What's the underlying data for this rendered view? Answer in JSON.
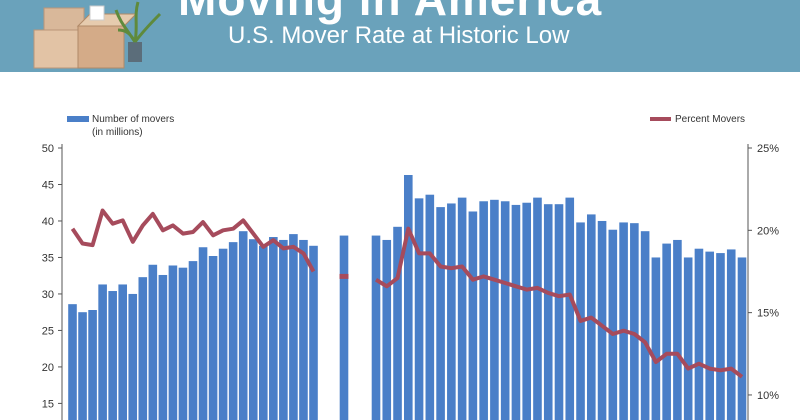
{
  "banner": {
    "title": "Moving in America",
    "subtitle": "U.S. Mover Rate at Historic Low",
    "illustration": "moving-boxes-with-plant"
  },
  "colors": {
    "banner": "#6aa2bb",
    "bars": "#4a7fc8",
    "line": "#a64b5c",
    "axis": "#555555"
  },
  "chart_data": {
    "type": "bar+line",
    "legend": {
      "bars": [
        "Number of movers",
        "(in millions)"
      ],
      "line": "Percent Movers",
      "placement": "top"
    },
    "y_left": {
      "range": [
        13,
        50
      ],
      "ticks": [
        15,
        20,
        25,
        30,
        35,
        40,
        45,
        50
      ]
    },
    "y_right": {
      "range": [
        8.6,
        25
      ],
      "ticks": [
        "10%",
        "15%",
        "20%",
        "25%"
      ]
    },
    "gap_after_index": 34,
    "series": [
      {
        "name": "Number of movers",
        "kind": "bar",
        "axis": "left",
        "values": [
          28.6,
          27.5,
          27.8,
          31.3,
          30.4,
          31.3,
          30.0,
          32.3,
          34.0,
          32.6,
          33.9,
          33.6,
          34.5,
          36.4,
          35.2,
          36.2,
          37.1,
          38.6,
          37.5,
          36.6,
          37.8,
          37.4,
          38.2,
          37.4,
          36.6,
          38.0,
          38.0,
          37.4,
          39.2,
          46.3,
          43.1,
          43.6,
          41.9,
          42.4,
          43.2,
          41.3,
          42.7,
          42.9,
          42.7,
          42.2,
          42.5,
          43.2,
          42.3,
          42.3,
          43.2,
          39.8,
          40.9,
          40.0,
          38.8,
          39.8,
          39.7,
          38.6,
          35.0,
          36.9,
          37.4,
          35.0,
          36.2,
          35.8,
          35.6,
          36.1,
          35.0
        ]
      },
      {
        "name": "Percent Movers",
        "kind": "line",
        "axis": "right",
        "values": [
          20.1,
          19.2,
          19.1,
          21.2,
          20.4,
          20.6,
          19.3,
          20.3,
          21.0,
          20.0,
          20.3,
          19.8,
          19.9,
          20.5,
          19.7,
          20.0,
          20.1,
          20.6,
          19.8,
          19.0,
          19.4,
          18.9,
          19.0,
          18.6,
          17.5,
          17.2,
          17.0,
          16.6,
          17.1,
          20.1,
          18.6,
          18.6,
          17.8,
          17.7,
          17.8,
          17.0,
          17.2,
          17.0,
          16.8,
          16.6,
          16.4,
          16.5,
          16.2,
          16.0,
          16.1,
          14.5,
          14.7,
          14.2,
          13.7,
          13.9,
          13.7,
          13.2,
          12.0,
          12.5,
          12.5,
          11.6,
          11.9,
          11.6,
          11.5,
          11.6,
          11.1
        ]
      }
    ]
  }
}
